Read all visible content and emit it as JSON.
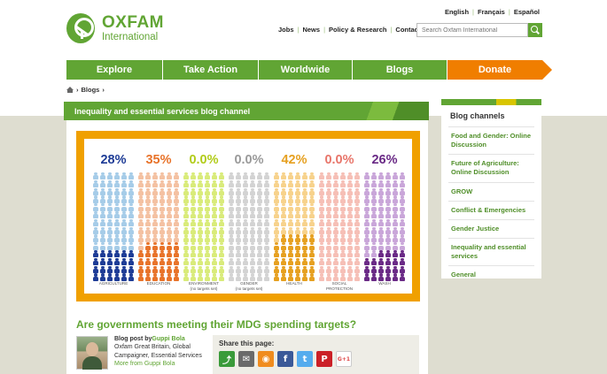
{
  "header": {
    "logo_name": "OXFAM",
    "logo_sub": "International",
    "languages": [
      "English",
      "Français",
      "Español"
    ],
    "top_links": [
      "Jobs",
      "News",
      "Policy & Research",
      "Contact"
    ],
    "search_placeholder": "Search Oxfam International"
  },
  "nav": {
    "items": [
      {
        "label": "Explore",
        "width": 109
      },
      {
        "label": "Take Action",
        "width": 108
      },
      {
        "label": "Worldwide",
        "width": 106
      },
      {
        "label": "Blogs",
        "width": 107
      },
      {
        "label": "Donate",
        "width": 108
      }
    ]
  },
  "breadcrumb": {
    "current": "Blogs"
  },
  "main": {
    "banner_title": "Inequality and essential services blog channel",
    "headline": "Are governments meeting their MDG spending targets?"
  },
  "chart_data": {
    "type": "pictogram",
    "categories": [
      "AGRICULTURE",
      "EDUCATION",
      "ENVIRONMENT (no targets set)",
      "GENDER (no targets set)",
      "HEALTH",
      "SOCIAL PROTECTION",
      "WASH"
    ],
    "percent_labels": [
      "28%",
      "35%",
      "0.0%",
      "0.0%",
      "42%",
      "0.0%",
      "26%"
    ],
    "values": [
      28,
      35,
      0,
      0,
      42,
      0,
      26
    ],
    "colors": [
      "#1e3c96",
      "#e8732a",
      "#b2cc1a",
      "#9a9a9a",
      "#e6a020",
      "#e8756a",
      "#6a2a86"
    ],
    "light_colors": [
      "#a6cce8",
      "#f4c1a2",
      "#d9eb7a",
      "#d3d3d3",
      "#f7d28c",
      "#f6bfb6",
      "#c9a6d9"
    ],
    "total_figures": 84
  },
  "author": {
    "prefix": "Blog post by",
    "name": "Guppi Bola",
    "desc": "Oxfam Great Britain, Global Campaigner, Essential Services",
    "more": "More from Guppi Bola"
  },
  "share": {
    "title": "Share this page:",
    "icons": [
      {
        "name": "share-icon",
        "glyph": "⤴",
        "color": "#3a9b3a"
      },
      {
        "name": "email-icon",
        "glyph": "✉",
        "color": "#6a6a6a"
      },
      {
        "name": "rss-icon",
        "glyph": "◉",
        "color": "#f08c1e"
      },
      {
        "name": "facebook-icon",
        "glyph": "f",
        "color": "#3b5998"
      },
      {
        "name": "twitter-icon",
        "glyph": "t",
        "color": "#55acee"
      },
      {
        "name": "pinterest-icon",
        "glyph": "P",
        "color": "#cb2027"
      },
      {
        "name": "googleplus-icon",
        "glyph": "G+1",
        "color": "#ffffff"
      }
    ]
  },
  "sidebar": {
    "title": "Blog channels",
    "items": [
      "Food and Gender: Online Discussion",
      "Future of Agriculture: Online Discussion",
      "GROW",
      "Conflict & Emergencies",
      "Gender Justice",
      "Inequality and essential services",
      "General"
    ]
  }
}
